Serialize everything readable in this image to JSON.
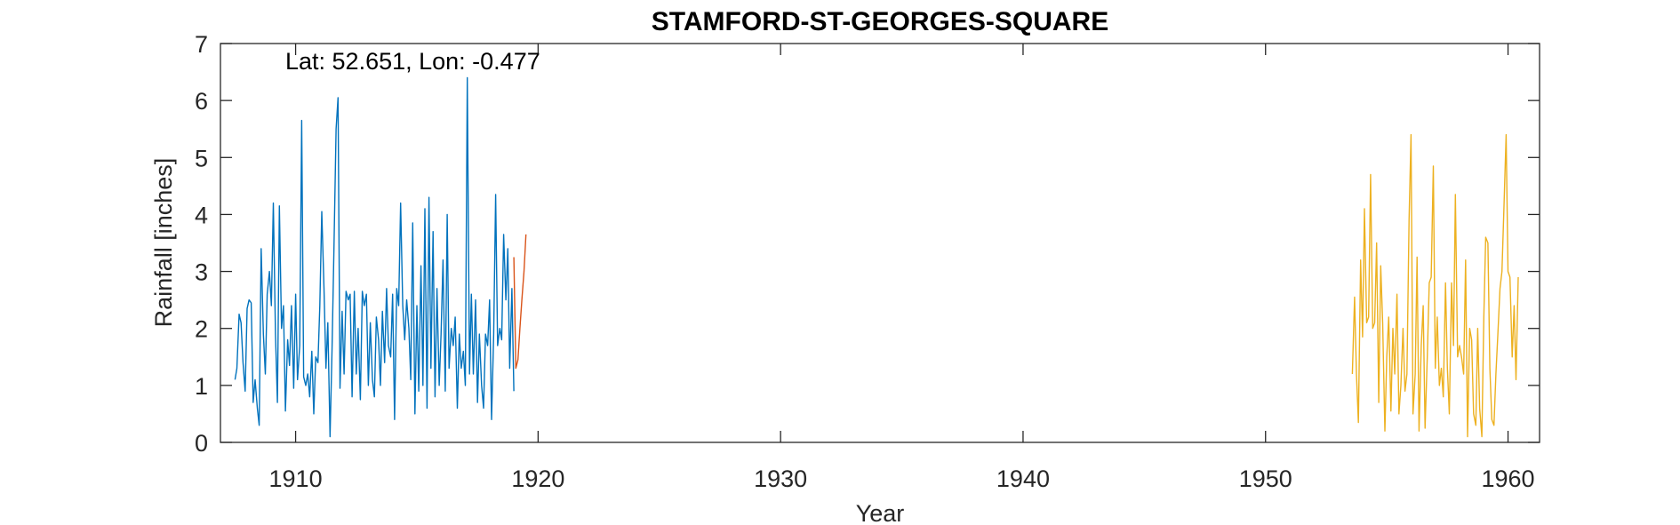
{
  "chart_data": {
    "type": "line",
    "title": "STAMFORD-ST-GEORGES-SQUARE",
    "xlabel": "Year",
    "ylabel": "Rainfall [inches]",
    "annotation": "Lat: 52.651, Lon: -0.477",
    "xlim": [
      1906.9,
      1961.3
    ],
    "ylim": [
      0,
      7
    ],
    "xticks": [
      1910,
      1920,
      1930,
      1940,
      1950,
      1960
    ],
    "yticks": [
      0,
      1,
      2,
      3,
      4,
      5,
      6,
      7
    ],
    "grid": false,
    "colors": {
      "series_1": "#0072BD",
      "series_2": "#D95319",
      "series_3": "#EDB120",
      "axis": "#262626"
    },
    "series": [
      {
        "x": [
          1907.5,
          1907.58,
          1907.67,
          1907.75,
          1907.83,
          1907.92,
          1908.0,
          1908.08,
          1908.17,
          1908.25,
          1908.33,
          1908.42,
          1908.5,
          1908.58,
          1908.67,
          1908.75,
          1908.83,
          1908.92,
          1909.0,
          1909.08,
          1909.17,
          1909.25,
          1909.33,
          1909.42,
          1909.5,
          1909.58,
          1909.67,
          1909.75,
          1909.83,
          1909.92,
          1910.0,
          1910.08,
          1910.17,
          1910.25,
          1910.33,
          1910.42,
          1910.5,
          1910.58,
          1910.67,
          1910.75,
          1910.83,
          1910.92,
          1911.0,
          1911.08,
          1911.17,
          1911.25,
          1911.33,
          1911.42,
          1911.5,
          1911.58,
          1911.67,
          1911.75,
          1911.83,
          1911.92,
          1912.0,
          1912.08,
          1912.17,
          1912.25,
          1912.33,
          1912.42,
          1912.5,
          1912.58,
          1912.67,
          1912.75,
          1912.83,
          1912.92,
          1913.0,
          1913.08,
          1913.17,
          1913.25,
          1913.33,
          1913.42,
          1913.5,
          1913.58,
          1913.67,
          1913.75,
          1913.83,
          1913.92,
          1914.0,
          1914.08,
          1914.17,
          1914.25,
          1914.33,
          1914.42,
          1914.5,
          1914.58,
          1914.67,
          1914.75,
          1914.83,
          1914.92,
          1915.0,
          1915.08,
          1915.17,
          1915.25,
          1915.33,
          1915.42,
          1915.5,
          1915.58,
          1915.67,
          1915.75,
          1915.83,
          1915.92,
          1916.0,
          1916.08,
          1916.17,
          1916.25,
          1916.33,
          1916.42,
          1916.5,
          1916.58,
          1916.67,
          1916.75,
          1916.83,
          1916.92,
          1917.0,
          1917.08,
          1917.17,
          1917.25,
          1917.33,
          1917.42,
          1917.5,
          1917.58,
          1917.67,
          1917.75,
          1917.83,
          1917.92,
          1918.0,
          1918.08,
          1918.17,
          1918.25,
          1918.33,
          1918.42,
          1918.5,
          1918.58,
          1918.67,
          1918.75,
          1918.83,
          1918.92,
          1919.0
        ],
        "values": [
          1.1,
          1.3,
          2.25,
          2.1,
          1.4,
          0.9,
          2.35,
          2.5,
          2.45,
          0.7,
          1.1,
          0.6,
          0.3,
          3.4,
          1.9,
          1.2,
          2.6,
          3.0,
          2.4,
          4.2,
          1.9,
          0.7,
          4.15,
          2.0,
          2.4,
          0.55,
          1.8,
          1.35,
          2.4,
          0.95,
          2.6,
          1.1,
          1.7,
          5.65,
          1.15,
          1.0,
          1.2,
          0.8,
          1.6,
          0.5,
          1.5,
          1.4,
          2.4,
          4.05,
          2.7,
          1.3,
          2.1,
          0.1,
          1.6,
          3.4,
          5.5,
          6.05,
          0.95,
          2.3,
          1.2,
          2.65,
          2.5,
          2.6,
          0.8,
          2.65,
          1.2,
          2.0,
          0.75,
          2.65,
          2.4,
          2.6,
          1.0,
          2.1,
          1.1,
          0.8,
          2.2,
          1.8,
          1.0,
          2.3,
          1.4,
          2.7,
          1.7,
          1.5,
          2.6,
          0.4,
          2.7,
          2.4,
          4.2,
          2.4,
          1.8,
          2.5,
          2.0,
          1.1,
          3.85,
          0.5,
          2.4,
          0.9,
          3.1,
          1.0,
          4.1,
          0.6,
          4.3,
          1.3,
          3.7,
          0.8,
          2.7,
          1.0,
          1.9,
          3.2,
          0.9,
          4.0,
          1.3,
          2.0,
          1.7,
          2.2,
          0.6,
          1.9,
          1.3,
          1.6,
          1.0,
          6.4,
          1.2,
          2.6,
          1.2,
          2.5,
          0.7,
          1.9,
          1.0,
          0.6,
          1.9,
          1.7,
          2.5,
          0.4,
          1.9,
          4.35,
          1.7,
          2.0,
          1.8,
          3.65,
          2.5,
          3.4,
          1.3,
          2.7,
          0.9
        ]
      },
      {
        "x": [
          1919.0,
          1919.08,
          1919.17,
          1919.25,
          1919.33,
          1919.42,
          1919.5
        ],
        "values": [
          3.25,
          1.3,
          1.45,
          2.0,
          2.5,
          3.0,
          3.65
        ]
      },
      {
        "x": [
          1953.58,
          1953.67,
          1953.75,
          1953.83,
          1953.92,
          1954.0,
          1954.08,
          1954.17,
          1954.25,
          1954.33,
          1954.42,
          1954.5,
          1954.58,
          1954.67,
          1954.75,
          1954.83,
          1954.92,
          1955.0,
          1955.08,
          1955.17,
          1955.25,
          1955.33,
          1955.42,
          1955.5,
          1955.58,
          1955.67,
          1955.75,
          1955.83,
          1955.92,
          1956.0,
          1956.08,
          1956.17,
          1956.25,
          1956.33,
          1956.42,
          1956.5,
          1956.58,
          1956.67,
          1956.75,
          1956.83,
          1956.92,
          1957.0,
          1957.08,
          1957.17,
          1957.25,
          1957.33,
          1957.42,
          1957.5,
          1957.58,
          1957.67,
          1957.75,
          1957.83,
          1957.92,
          1958.0,
          1958.08,
          1958.17,
          1958.25,
          1958.33,
          1958.42,
          1958.5,
          1958.58,
          1958.67,
          1958.75,
          1958.83,
          1958.92,
          1959.0,
          1959.08,
          1959.17,
          1959.25,
          1959.33,
          1959.42,
          1959.5,
          1959.58,
          1959.67,
          1959.75,
          1959.83,
          1959.92,
          1960.0,
          1960.08,
          1960.17,
          1960.25,
          1960.33,
          1960.42
        ],
        "values": [
          1.2,
          2.55,
          1.2,
          0.35,
          3.2,
          1.85,
          4.1,
          2.1,
          2.2,
          4.7,
          2.0,
          2.1,
          3.5,
          0.7,
          3.1,
          2.1,
          0.2,
          1.5,
          2.2,
          0.55,
          2.0,
          1.2,
          2.6,
          0.5,
          1.0,
          2.0,
          0.9,
          1.2,
          3.9,
          5.4,
          0.5,
          1.2,
          3.25,
          0.2,
          1.7,
          2.4,
          0.25,
          1.5,
          2.8,
          2.9,
          4.85,
          1.3,
          2.2,
          1.0,
          1.3,
          0.8,
          2.8,
          1.3,
          0.5,
          2.8,
          1.7,
          4.35,
          1.5,
          1.7,
          1.5,
          1.2,
          3.2,
          0.1,
          2.0,
          1.8,
          0.5,
          0.3,
          2.0,
          0.6,
          0.1,
          2.2,
          3.6,
          3.5,
          1.3,
          0.4,
          0.3,
          1.2,
          1.9,
          2.7,
          3.0,
          4.1,
          5.4,
          3.0,
          2.9,
          1.5,
          2.4,
          1.1,
          2.9
        ]
      }
    ]
  }
}
